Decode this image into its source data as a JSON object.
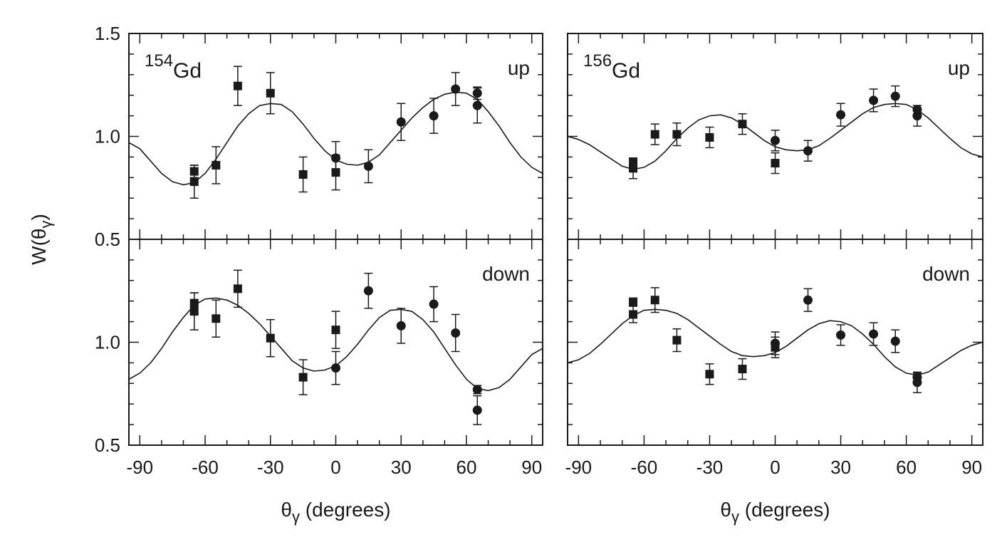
{
  "chart_data": [
    {
      "type": "scatter",
      "nucleus": [
        "154",
        "Gd"
      ],
      "annotation": "up",
      "ylabel": [
        "W(θ",
        "γ",
        ")"
      ],
      "xlim": [
        -95,
        95
      ],
      "ylim": [
        0.5,
        1.5
      ],
      "xticks": [
        -90,
        -60,
        -30,
        0,
        30,
        60,
        90
      ],
      "xminor": [
        -80,
        -70,
        -50,
        -40,
        -20,
        -10,
        10,
        20,
        40,
        50,
        70,
        80
      ],
      "yticks": [
        0.5,
        {
          "value": 1.0,
          "label": "1.0"
        },
        1.5
      ],
      "yminor": [
        0.6,
        0.7,
        0.8,
        0.9,
        1.1,
        1.2,
        1.3,
        1.4
      ],
      "xtick_labels": false,
      "ytick_labels": true,
      "color": "#1a1a1a",
      "series": [
        {
          "marker": "square",
          "x": [
            -65,
            -65,
            -55,
            -45,
            -30,
            -15,
            0
          ],
          "y": [
            0.83,
            0.78,
            0.86,
            1.245,
            1.21,
            0.815,
            0.825
          ],
          "err": [
            0.03,
            0.08,
            0.09,
            0.095,
            0.1,
            0.085,
            0.085
          ]
        },
        {
          "marker": "circle",
          "x": [
            0,
            15,
            30,
            45,
            55,
            65,
            65
          ],
          "y": [
            0.895,
            0.855,
            1.07,
            1.1,
            1.23,
            1.21,
            1.15
          ],
          "err": [
            0.08,
            0.08,
            0.09,
            0.085,
            0.08,
            0.03,
            0.085
          ]
        }
      ],
      "fit": {
        "x": [
          -95,
          -90,
          -85,
          -80,
          -75,
          -70,
          -65,
          -60,
          -55,
          -50,
          -45,
          -40,
          -35,
          -30,
          -25,
          -20,
          -15,
          -10,
          -5,
          0,
          5,
          10,
          15,
          20,
          25,
          30,
          35,
          40,
          45,
          50,
          55,
          60,
          65,
          70,
          75,
          80,
          85,
          90,
          95
        ],
        "y": [
          0.97,
          0.94,
          0.88,
          0.82,
          0.78,
          0.765,
          0.775,
          0.82,
          0.89,
          0.97,
          1.05,
          1.11,
          1.15,
          1.16,
          1.155,
          1.12,
          1.06,
          0.99,
          0.93,
          0.885,
          0.865,
          0.86,
          0.875,
          0.91,
          0.97,
          1.03,
          1.09,
          1.14,
          1.18,
          1.205,
          1.215,
          1.21,
          1.18,
          1.12,
          1.05,
          0.97,
          0.9,
          0.85,
          0.82
        ]
      }
    },
    {
      "type": "scatter",
      "nucleus": [
        "156",
        "Gd"
      ],
      "annotation": "up",
      "xlim": [
        -95,
        95
      ],
      "ylim": [
        0.5,
        1.5
      ],
      "xticks": [
        -90,
        -60,
        -30,
        0,
        30,
        60,
        90
      ],
      "xminor": [
        -80,
        -70,
        -50,
        -40,
        -20,
        -10,
        10,
        20,
        40,
        50,
        70,
        80
      ],
      "yticks": [
        0.5,
        1.0,
        1.5
      ],
      "yminor": [
        0.6,
        0.7,
        0.8,
        0.9,
        1.1,
        1.2,
        1.3,
        1.4
      ],
      "xtick_labels": false,
      "ytick_labels": false,
      "color": "#1a1a1a",
      "series": [
        {
          "marker": "square",
          "x": [
            -65,
            -65,
            -55,
            -45,
            -30,
            -15,
            0
          ],
          "y": [
            0.875,
            0.845,
            1.01,
            1.01,
            0.995,
            1.06,
            0.87
          ],
          "err": [
            0.02,
            0.05,
            0.05,
            0.055,
            0.05,
            0.05,
            0.05
          ]
        },
        {
          "marker": "circle",
          "x": [
            0,
            15,
            30,
            45,
            55,
            65,
            65
          ],
          "y": [
            0.98,
            0.93,
            1.105,
            1.175,
            1.195,
            1.13,
            1.1
          ],
          "err": [
            0.05,
            0.05,
            0.055,
            0.055,
            0.05,
            0.02,
            0.05
          ]
        }
      ],
      "fit": {
        "x": [
          -95,
          -90,
          -85,
          -80,
          -75,
          -70,
          -65,
          -60,
          -55,
          -50,
          -45,
          -40,
          -35,
          -30,
          -25,
          -20,
          -15,
          -10,
          -5,
          0,
          5,
          10,
          15,
          20,
          25,
          30,
          35,
          40,
          45,
          50,
          55,
          60,
          65,
          70,
          75,
          80,
          85,
          90,
          95
        ],
        "y": [
          1.0,
          0.985,
          0.96,
          0.925,
          0.89,
          0.855,
          0.84,
          0.85,
          0.88,
          0.93,
          0.99,
          1.04,
          1.08,
          1.1,
          1.105,
          1.09,
          1.06,
          1.02,
          0.98,
          0.95,
          0.935,
          0.93,
          0.935,
          0.955,
          0.99,
          1.03,
          1.07,
          1.11,
          1.14,
          1.155,
          1.16,
          1.155,
          1.13,
          1.09,
          1.04,
          0.99,
          0.945,
          0.915,
          0.9
        ]
      }
    },
    {
      "type": "scatter",
      "annotation": "down",
      "xlabel": [
        "θ",
        "γ",
        " (degrees)"
      ],
      "xlim": [
        -95,
        95
      ],
      "ylim": [
        0.5,
        1.5
      ],
      "xticks": [
        -90,
        -60,
        -30,
        0,
        30,
        60,
        90
      ],
      "xminor": [
        -80,
        -70,
        -50,
        -40,
        -20,
        -10,
        10,
        20,
        40,
        50,
        70,
        80
      ],
      "yticks": [
        0.5,
        {
          "value": 1.0,
          "label": "1.0"
        }
      ],
      "yminor": [
        0.6,
        0.7,
        0.8,
        0.9,
        1.1,
        1.2,
        1.3,
        1.4
      ],
      "xtick_labels": true,
      "ytick_labels": true,
      "color": "#1a1a1a",
      "series": [
        {
          "marker": "square",
          "x": [
            -65,
            -65,
            -55,
            -45,
            -30,
            -15,
            0
          ],
          "y": [
            1.19,
            1.15,
            1.115,
            1.26,
            1.02,
            0.83,
            1.06
          ],
          "err": [
            0.05,
            0.09,
            0.09,
            0.09,
            0.09,
            0.085,
            0.09
          ]
        },
        {
          "marker": "circle",
          "x": [
            0,
            15,
            30,
            45,
            55,
            65,
            65
          ],
          "y": [
            0.875,
            1.25,
            1.08,
            1.185,
            1.045,
            0.77,
            0.67
          ],
          "err": [
            0.08,
            0.085,
            0.085,
            0.085,
            0.09,
            0.02,
            0.07
          ]
        }
      ],
      "fit": {
        "x": [
          -95,
          -90,
          -85,
          -80,
          -75,
          -70,
          -65,
          -60,
          -55,
          -50,
          -45,
          -40,
          -35,
          -30,
          -25,
          -20,
          -15,
          -10,
          -5,
          0,
          5,
          10,
          15,
          20,
          25,
          30,
          35,
          40,
          45,
          50,
          55,
          60,
          65,
          70,
          75,
          80,
          85,
          90,
          95
        ],
        "y": [
          0.82,
          0.85,
          0.9,
          0.97,
          1.05,
          1.12,
          1.18,
          1.21,
          1.215,
          1.205,
          1.18,
          1.14,
          1.09,
          1.03,
          0.97,
          0.91,
          0.875,
          0.86,
          0.865,
          0.885,
          0.93,
          0.99,
          1.06,
          1.12,
          1.155,
          1.16,
          1.15,
          1.11,
          1.05,
          0.97,
          0.89,
          0.82,
          0.775,
          0.765,
          0.78,
          0.82,
          0.88,
          0.94,
          0.97
        ]
      }
    },
    {
      "type": "scatter",
      "annotation": "down",
      "xlabel": [
        "θ",
        "γ",
        " (degrees)"
      ],
      "xlim": [
        -95,
        95
      ],
      "ylim": [
        0.5,
        1.5
      ],
      "xticks": [
        {
          "value": -90,
          "label": "-90"
        },
        -60,
        -30,
        0,
        30,
        60,
        90
      ],
      "xminor": [
        -80,
        -70,
        -50,
        -40,
        -20,
        -10,
        10,
        20,
        40,
        50,
        70,
        80
      ],
      "yticks": [
        0.5,
        1.0,
        1.5
      ],
      "yminor": [
        0.6,
        0.7,
        0.8,
        0.9,
        1.1,
        1.2,
        1.3,
        1.4
      ],
      "xtick_labels": true,
      "ytick_labels": false,
      "color": "#1a1a1a",
      "series": [
        {
          "marker": "square",
          "x": [
            -65,
            -65,
            -55,
            -45,
            -30,
            -15,
            0
          ],
          "y": [
            1.195,
            1.135,
            1.205,
            1.01,
            0.845,
            0.87,
            0.975
          ],
          "err": [
            0.02,
            0.04,
            0.06,
            0.055,
            0.05,
            0.05,
            0.05
          ]
        },
        {
          "marker": "circle",
          "x": [
            0,
            15,
            30,
            45,
            55,
            65,
            65
          ],
          "y": [
            0.995,
            1.205,
            1.035,
            1.04,
            1.005,
            0.83,
            0.805
          ],
          "err": [
            0.055,
            0.055,
            0.05,
            0.055,
            0.055,
            0.02,
            0.05
          ]
        }
      ],
      "fit": {
        "x": [
          -95,
          -90,
          -85,
          -80,
          -75,
          -70,
          -65,
          -60,
          -55,
          -50,
          -45,
          -40,
          -35,
          -30,
          -25,
          -20,
          -15,
          -10,
          -5,
          0,
          5,
          10,
          15,
          20,
          25,
          30,
          35,
          40,
          45,
          50,
          55,
          60,
          65,
          70,
          75,
          80,
          85,
          90,
          95
        ],
        "y": [
          0.9,
          0.915,
          0.945,
          0.99,
          1.04,
          1.09,
          1.13,
          1.155,
          1.16,
          1.155,
          1.14,
          1.11,
          1.07,
          1.03,
          0.99,
          0.955,
          0.935,
          0.93,
          0.935,
          0.95,
          0.98,
          1.02,
          1.06,
          1.09,
          1.105,
          1.1,
          1.08,
          1.04,
          0.99,
          0.93,
          0.88,
          0.85,
          0.84,
          0.855,
          0.89,
          0.925,
          0.96,
          0.985,
          1.0
        ]
      }
    }
  ]
}
